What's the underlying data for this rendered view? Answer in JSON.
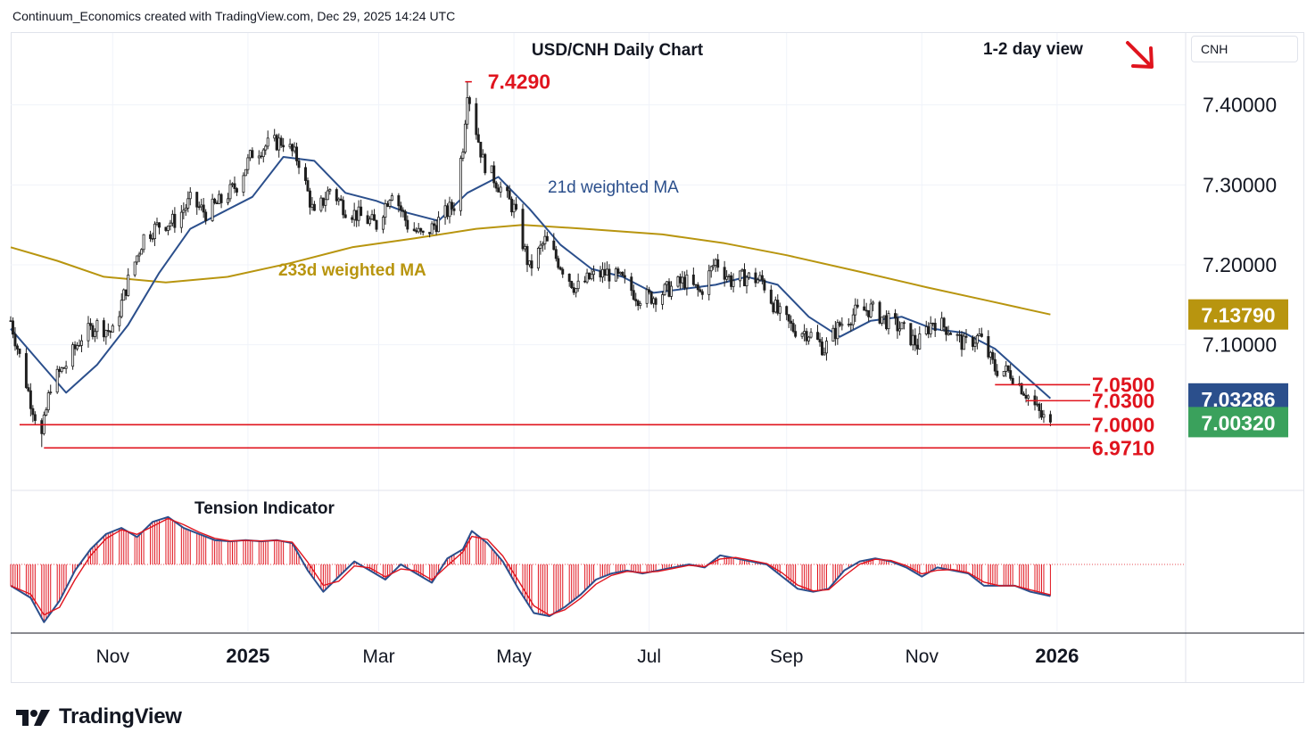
{
  "header": {
    "caption": "Continuum_Economics created with TradingView.com, Dec 29, 2025 14:24 UTC"
  },
  "symbol_box": {
    "label": "CNH"
  },
  "footer": {
    "brand": "TradingView",
    "logo_icon": "tradingview-logo-icon"
  },
  "colors": {
    "up": "#1f1f1f",
    "down": "#1f1f1f",
    "ma21": "#2b4f8c",
    "ma233": "#b8950f",
    "level": "#e0141e",
    "tension_bar": "#e0141e",
    "tension_line": "#2b4f8c",
    "tension_line2": "#e0141e",
    "badge_ma233": "#b8950f",
    "badge_ma21": "#2b4f8c",
    "badge_last": "#3aa15c",
    "arrow": "#e0141e"
  },
  "chart_data": {
    "type": "candlestick",
    "title": "USD/CNH Daily Chart",
    "view_note": "1-2 day view",
    "direction_icon": "arrow-down-right-icon",
    "ylim": [
      6.92,
      7.49
    ],
    "y_ticks": [
      "7.40000",
      "7.30000",
      "7.20000",
      "7.10000"
    ],
    "x_ticks": [
      {
        "label": "Nov",
        "date": "2024-11-01",
        "bold": false
      },
      {
        "label": "2025",
        "date": "2025-01-01",
        "bold": true
      },
      {
        "label": "Mar",
        "date": "2025-03-01",
        "bold": false
      },
      {
        "label": "May",
        "date": "2025-05-01",
        "bold": false
      },
      {
        "label": "Jul",
        "date": "2025-07-01",
        "bold": false
      },
      {
        "label": "Sep",
        "date": "2025-09-01",
        "bold": false
      },
      {
        "label": "Nov",
        "date": "2025-11-01",
        "bold": false
      },
      {
        "label": "2026",
        "date": "2026-01-01",
        "bold": true
      }
    ],
    "x_range": [
      "2024-09-16",
      "2026-02-28"
    ],
    "close_path": [
      [
        "2024-09-16",
        7.13
      ],
      [
        "2024-09-25",
        7.03
      ],
      [
        "2024-09-30",
        6.985
      ],
      [
        "2024-10-04",
        7.05
      ],
      [
        "2024-10-11",
        7.075
      ],
      [
        "2024-10-18",
        7.11
      ],
      [
        "2024-10-25",
        7.125
      ],
      [
        "2024-11-01",
        7.115
      ],
      [
        "2024-11-08",
        7.18
      ],
      [
        "2024-11-15",
        7.235
      ],
      [
        "2024-11-22",
        7.25
      ],
      [
        "2024-11-29",
        7.255
      ],
      [
        "2024-12-06",
        7.28
      ],
      [
        "2024-12-13",
        7.265
      ],
      [
        "2024-12-20",
        7.28
      ],
      [
        "2024-12-27",
        7.3
      ],
      [
        "2025-01-03",
        7.34
      ],
      [
        "2025-01-10",
        7.35
      ],
      [
        "2025-01-17",
        7.355
      ],
      [
        "2025-01-24",
        7.33
      ],
      [
        "2025-01-31",
        7.26
      ],
      [
        "2025-02-07",
        7.295
      ],
      [
        "2025-02-14",
        7.27
      ],
      [
        "2025-02-21",
        7.26
      ],
      [
        "2025-02-28",
        7.25
      ],
      [
        "2025-03-07",
        7.295
      ],
      [
        "2025-03-14",
        7.25
      ],
      [
        "2025-03-21",
        7.235
      ],
      [
        "2025-03-28",
        7.255
      ],
      [
        "2025-04-04",
        7.275
      ],
      [
        "2025-04-08",
        7.35
      ],
      [
        "2025-04-10",
        7.42
      ],
      [
        "2025-04-17",
        7.33
      ],
      [
        "2025-04-24",
        7.3
      ],
      [
        "2025-05-01",
        7.27
      ],
      [
        "2025-05-08",
        7.195
      ],
      [
        "2025-05-15",
        7.23
      ],
      [
        "2025-05-22",
        7.2
      ],
      [
        "2025-05-29",
        7.17
      ],
      [
        "2025-06-05",
        7.185
      ],
      [
        "2025-06-12",
        7.19
      ],
      [
        "2025-06-19",
        7.18
      ],
      [
        "2025-06-26",
        7.16
      ],
      [
        "2025-07-03",
        7.16
      ],
      [
        "2025-07-10",
        7.17
      ],
      [
        "2025-07-17",
        7.18
      ],
      [
        "2025-07-24",
        7.165
      ],
      [
        "2025-07-31",
        7.205
      ],
      [
        "2025-08-07",
        7.18
      ],
      [
        "2025-08-14",
        7.185
      ],
      [
        "2025-08-21",
        7.18
      ],
      [
        "2025-08-28",
        7.14
      ],
      [
        "2025-09-04",
        7.12
      ],
      [
        "2025-09-11",
        7.115
      ],
      [
        "2025-09-18",
        7.095
      ],
      [
        "2025-09-25",
        7.125
      ],
      [
        "2025-10-02",
        7.14
      ],
      [
        "2025-10-09",
        7.145
      ],
      [
        "2025-10-16",
        7.13
      ],
      [
        "2025-10-23",
        7.12
      ],
      [
        "2025-10-30",
        7.1
      ],
      [
        "2025-11-06",
        7.13
      ],
      [
        "2025-11-13",
        7.12
      ],
      [
        "2025-11-20",
        7.1
      ],
      [
        "2025-11-27",
        7.11
      ],
      [
        "2025-12-04",
        7.07
      ],
      [
        "2025-12-11",
        7.065
      ],
      [
        "2025-12-18",
        7.04
      ],
      [
        "2025-12-25",
        7.01
      ],
      [
        "2025-12-29",
        7.0032
      ]
    ],
    "ma21_label": "21d weighted MA",
    "ma21": [
      [
        "2024-09-16",
        7.12
      ],
      [
        "2024-09-30",
        7.075
      ],
      [
        "2024-10-11",
        7.04
      ],
      [
        "2024-10-25",
        7.075
      ],
      [
        "2024-11-08",
        7.125
      ],
      [
        "2024-11-22",
        7.19
      ],
      [
        "2024-12-06",
        7.245
      ],
      [
        "2024-12-20",
        7.265
      ],
      [
        "2025-01-03",
        7.285
      ],
      [
        "2025-01-17",
        7.335
      ],
      [
        "2025-01-31",
        7.33
      ],
      [
        "2025-02-14",
        7.29
      ],
      [
        "2025-02-28",
        7.28
      ],
      [
        "2025-03-14",
        7.265
      ],
      [
        "2025-03-28",
        7.255
      ],
      [
        "2025-04-10",
        7.29
      ],
      [
        "2025-04-24",
        7.31
      ],
      [
        "2025-05-08",
        7.27
      ],
      [
        "2025-05-22",
        7.225
      ],
      [
        "2025-06-05",
        7.195
      ],
      [
        "2025-06-19",
        7.185
      ],
      [
        "2025-07-03",
        7.165
      ],
      [
        "2025-07-17",
        7.17
      ],
      [
        "2025-07-31",
        7.175
      ],
      [
        "2025-08-14",
        7.185
      ],
      [
        "2025-08-28",
        7.175
      ],
      [
        "2025-09-11",
        7.135
      ],
      [
        "2025-09-25",
        7.11
      ],
      [
        "2025-10-09",
        7.13
      ],
      [
        "2025-10-23",
        7.135
      ],
      [
        "2025-11-06",
        7.12
      ],
      [
        "2025-11-20",
        7.115
      ],
      [
        "2025-12-04",
        7.095
      ],
      [
        "2025-12-18",
        7.06
      ],
      [
        "2025-12-29",
        7.03286
      ]
    ],
    "ma233_label": "233d weighted MA",
    "ma233": [
      [
        "2024-09-16",
        7.222
      ],
      [
        "2024-10-07",
        7.205
      ],
      [
        "2024-10-28",
        7.185
      ],
      [
        "2024-11-25",
        7.178
      ],
      [
        "2024-12-23",
        7.185
      ],
      [
        "2025-01-20",
        7.202
      ],
      [
        "2025-02-17",
        7.222
      ],
      [
        "2025-03-17",
        7.233
      ],
      [
        "2025-04-14",
        7.245
      ],
      [
        "2025-05-05",
        7.25
      ],
      [
        "2025-06-02",
        7.245
      ],
      [
        "2025-07-07",
        7.238
      ],
      [
        "2025-08-04",
        7.227
      ],
      [
        "2025-09-01",
        7.212
      ],
      [
        "2025-10-06",
        7.19
      ],
      [
        "2025-11-03",
        7.172
      ],
      [
        "2025-12-01",
        7.155
      ],
      [
        "2025-12-29",
        7.1379
      ]
    ],
    "levels": [
      {
        "label": "7.4290",
        "value": 7.429,
        "from": "2025-04-09",
        "to": "2025-04-12",
        "label_at": "2025-04-20",
        "label_side": "right"
      },
      {
        "label": "7.0500",
        "value": 7.05,
        "from": "2025-12-04",
        "to": "2025-12-29",
        "label_at": "end",
        "label_side": "right"
      },
      {
        "label": "7.0300",
        "value": 7.03,
        "from": "2025-12-18",
        "to": "2025-12-29",
        "label_at": "end",
        "label_side": "right"
      },
      {
        "label": "7.0000",
        "value": 7.0,
        "from": "2024-09-20",
        "to": "2025-12-29",
        "label_at": "end",
        "label_side": "right"
      },
      {
        "label": "6.9710",
        "value": 6.971,
        "from": "2024-10-01",
        "to": "2025-12-29",
        "label_at": "end",
        "label_side": "right"
      }
    ],
    "price_badges": [
      {
        "label": "7.13790",
        "value": 7.1379,
        "color_key": "badge_ma233"
      },
      {
        "label": "7.03286",
        "value": 7.03286,
        "color_key": "badge_ma21"
      },
      {
        "label": "7.00320",
        "value": 7.0032,
        "color_key": "badge_last"
      }
    ],
    "last_close": 7.0032,
    "high": 7.429,
    "tension_indicator": {
      "title": "Tension Indicator",
      "ylim": [
        -1.1,
        1.1
      ],
      "points": [
        [
          "2024-09-16",
          -0.35
        ],
        [
          "2024-09-25",
          -0.55
        ],
        [
          "2024-10-01",
          -0.95
        ],
        [
          "2024-10-08",
          -0.6
        ],
        [
          "2024-10-15",
          -0.1
        ],
        [
          "2024-10-22",
          0.25
        ],
        [
          "2024-10-29",
          0.5
        ],
        [
          "2024-11-05",
          0.6
        ],
        [
          "2024-11-12",
          0.45
        ],
        [
          "2024-11-19",
          0.7
        ],
        [
          "2024-11-26",
          0.78
        ],
        [
          "2024-12-03",
          0.6
        ],
        [
          "2024-12-10",
          0.5
        ],
        [
          "2024-12-17",
          0.4
        ],
        [
          "2024-12-24",
          0.38
        ],
        [
          "2024-12-31",
          0.4
        ],
        [
          "2025-01-07",
          0.38
        ],
        [
          "2025-01-14",
          0.4
        ],
        [
          "2025-01-21",
          0.35
        ],
        [
          "2025-01-28",
          -0.1
        ],
        [
          "2025-02-04",
          -0.45
        ],
        [
          "2025-02-11",
          -0.2
        ],
        [
          "2025-02-18",
          0.05
        ],
        [
          "2025-02-25",
          -0.1
        ],
        [
          "2025-03-04",
          -0.25
        ],
        [
          "2025-03-11",
          0.0
        ],
        [
          "2025-03-18",
          -0.15
        ],
        [
          "2025-03-25",
          -0.3
        ],
        [
          "2025-04-01",
          0.1
        ],
        [
          "2025-04-08",
          0.25
        ],
        [
          "2025-04-12",
          0.55
        ],
        [
          "2025-04-19",
          0.35
        ],
        [
          "2025-04-26",
          0.05
        ],
        [
          "2025-05-03",
          -0.4
        ],
        [
          "2025-05-10",
          -0.8
        ],
        [
          "2025-05-17",
          -0.85
        ],
        [
          "2025-05-24",
          -0.7
        ],
        [
          "2025-05-31",
          -0.5
        ],
        [
          "2025-06-07",
          -0.25
        ],
        [
          "2025-06-14",
          -0.15
        ],
        [
          "2025-06-21",
          -0.1
        ],
        [
          "2025-06-28",
          -0.15
        ],
        [
          "2025-07-05",
          -0.1
        ],
        [
          "2025-07-12",
          -0.05
        ],
        [
          "2025-07-19",
          0.0
        ],
        [
          "2025-07-26",
          -0.05
        ],
        [
          "2025-08-02",
          0.15
        ],
        [
          "2025-08-09",
          0.1
        ],
        [
          "2025-08-16",
          0.05
        ],
        [
          "2025-08-23",
          0.0
        ],
        [
          "2025-08-30",
          -0.2
        ],
        [
          "2025-09-06",
          -0.4
        ],
        [
          "2025-09-13",
          -0.45
        ],
        [
          "2025-09-20",
          -0.4
        ],
        [
          "2025-09-27",
          -0.1
        ],
        [
          "2025-10-04",
          0.05
        ],
        [
          "2025-10-11",
          0.1
        ],
        [
          "2025-10-18",
          0.05
        ],
        [
          "2025-10-25",
          -0.05
        ],
        [
          "2025-11-01",
          -0.2
        ],
        [
          "2025-11-08",
          -0.05
        ],
        [
          "2025-11-15",
          -0.1
        ],
        [
          "2025-11-22",
          -0.15
        ],
        [
          "2025-11-29",
          -0.35
        ],
        [
          "2025-12-06",
          -0.35
        ],
        [
          "2025-12-13",
          -0.35
        ],
        [
          "2025-12-20",
          -0.45
        ],
        [
          "2025-12-29",
          -0.52
        ]
      ]
    }
  }
}
